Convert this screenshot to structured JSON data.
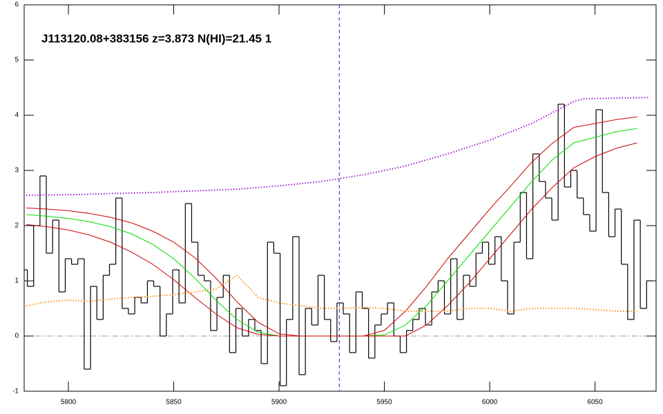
{
  "chart_data": {
    "type": "line",
    "title": "J113120.08+383156 z=3.873 N(HI)=21.45 1",
    "xlim": [
      5779,
      6079
    ],
    "ylim": [
      -1,
      6
    ],
    "xticks": [
      5800,
      5850,
      5900,
      5950,
      6000,
      6050
    ],
    "yticks": [
      -1,
      0,
      1,
      2,
      3,
      4,
      5,
      6
    ],
    "vline_x": 5928.6,
    "vline_color": "#2222cc",
    "series": [
      {
        "style": "step",
        "color": "#000000",
        "x": [
          5779,
          5782,
          5785,
          5788,
          5791,
          5794,
          5797,
          5800,
          5803,
          5806,
          5809,
          5812,
          5815,
          5818,
          5821,
          5824,
          5827,
          5830,
          5833,
          5836,
          5839,
          5842,
          5845,
          5848,
          5851,
          5854,
          5857,
          5860,
          5863,
          5866,
          5869,
          5872,
          5875,
          5878,
          5881,
          5884,
          5887,
          5890,
          5893,
          5896,
          5899,
          5902,
          5905,
          5908,
          5911,
          5914,
          5917,
          5920,
          5923,
          5926,
          5929,
          5932,
          5935,
          5938,
          5941,
          5944,
          5947,
          5950,
          5953,
          5956,
          5959,
          5962,
          5965,
          5968,
          5971,
          5974,
          5977,
          5980,
          5983,
          5986,
          5989,
          5992,
          5995,
          5998,
          6001,
          6004,
          6007,
          6010,
          6013,
          6016,
          6019,
          6022,
          6025,
          6028,
          6031,
          6034,
          6037,
          6040,
          6043,
          6046,
          6049,
          6052,
          6055,
          6058,
          6061,
          6064,
          6067,
          6070,
          6073,
          6076
        ],
        "values": [
          1.2,
          0.9,
          2.0,
          2.9,
          1.5,
          2.1,
          0.8,
          1.4,
          1.3,
          1.4,
          -0.6,
          0.9,
          0.3,
          1.1,
          1.3,
          2.5,
          0.5,
          0.4,
          0.7,
          0.6,
          1.0,
          0.9,
          0.0,
          0.4,
          1.2,
          0.6,
          2.4,
          1.7,
          1.1,
          1.0,
          0.1,
          0.7,
          1.1,
          -0.3,
          0.5,
          0.0,
          0.3,
          0.1,
          -0.5,
          1.7,
          1.5,
          -0.9,
          0.3,
          1.8,
          -0.7,
          0.5,
          0.2,
          1.1,
          0.3,
          -0.1,
          0.6,
          0.4,
          -0.3,
          0.8,
          0.5,
          -0.4,
          0.2,
          0.4,
          0.6,
          0.0,
          -0.3,
          0.1,
          0.3,
          0.5,
          0.2,
          0.8,
          1.0,
          0.4,
          1.4,
          0.3,
          1.1,
          0.9,
          1.5,
          1.7,
          1.3,
          1.8,
          1.0,
          0.4,
          1.7,
          2.6,
          1.4,
          3.3,
          2.8,
          2.5,
          2.1,
          4.2,
          2.7,
          3.0,
          2.5,
          2.2,
          1.9,
          4.1,
          2.6,
          1.8,
          2.3,
          1.3,
          0.3,
          2.1,
          0.5,
          1.0
        ]
      },
      {
        "style": "solid",
        "color": "#00dd00",
        "x": [
          5780,
          5790,
          5800,
          5810,
          5820,
          5830,
          5840,
          5850,
          5860,
          5870,
          5880,
          5890,
          5900,
          5910,
          5920,
          5930,
          5940,
          5950,
          5960,
          5970,
          5980,
          5990,
          6000,
          6010,
          6020,
          6030,
          6040,
          6050,
          6060,
          6070
        ],
        "values": [
          2.2,
          2.17,
          2.13,
          2.07,
          1.98,
          1.85,
          1.66,
          1.4,
          1.05,
          0.65,
          0.3,
          0.07,
          0,
          0,
          0,
          0,
          0,
          0.02,
          0.2,
          0.55,
          1.0,
          1.45,
          1.9,
          2.35,
          2.8,
          3.2,
          3.5,
          3.6,
          3.7,
          3.76
        ]
      },
      {
        "style": "solid",
        "color": "#cc0000",
        "x": [
          5780,
          5790,
          5800,
          5810,
          5820,
          5830,
          5840,
          5850,
          5860,
          5870,
          5880,
          5890,
          5900,
          5910,
          5920,
          5930,
          5940,
          5950,
          5960,
          5970,
          5980,
          5990,
          6000,
          6010,
          6020,
          6030,
          6040,
          6050,
          6060,
          6070
        ],
        "values": [
          2.32,
          2.3,
          2.27,
          2.22,
          2.15,
          2.05,
          1.9,
          1.7,
          1.42,
          1.05,
          0.62,
          0.25,
          0.04,
          0,
          0,
          0,
          0,
          0.1,
          0.45,
          0.9,
          1.4,
          1.85,
          2.3,
          2.72,
          3.15,
          3.5,
          3.78,
          3.85,
          3.92,
          3.97
        ]
      },
      {
        "style": "solid",
        "color": "#cc0000",
        "x": [
          5780,
          5790,
          5800,
          5810,
          5820,
          5830,
          5840,
          5850,
          5860,
          5870,
          5880,
          5890,
          5900,
          5910,
          5920,
          5930,
          5940,
          5950,
          5960,
          5970,
          5980,
          5990,
          6000,
          6010,
          6020,
          6030,
          6040,
          6050,
          6060,
          6070
        ],
        "values": [
          2.02,
          1.98,
          1.92,
          1.83,
          1.7,
          1.52,
          1.3,
          1.02,
          0.7,
          0.4,
          0.15,
          0.03,
          0,
          0,
          0,
          0,
          0,
          0,
          0,
          0.2,
          0.55,
          0.95,
          1.4,
          1.85,
          2.3,
          2.7,
          3.05,
          3.25,
          3.4,
          3.5
        ]
      },
      {
        "style": "dotted",
        "color": "#9900cc",
        "x": [
          5780,
          5800,
          5820,
          5840,
          5860,
          5880,
          5900,
          5920,
          5940,
          5960,
          5980,
          6000,
          6020,
          6040,
          6045,
          6060,
          6076
        ],
        "values": [
          2.55,
          2.56,
          2.58,
          2.6,
          2.63,
          2.66,
          2.72,
          2.8,
          2.92,
          3.08,
          3.3,
          3.55,
          3.85,
          4.25,
          4.3,
          4.31,
          4.32
        ]
      },
      {
        "style": "dotted",
        "color": "#ff8800",
        "x": [
          5780,
          5790,
          5800,
          5810,
          5820,
          5830,
          5840,
          5850,
          5860,
          5870,
          5880,
          5890,
          5900,
          5910,
          5920,
          5930,
          5940,
          5950,
          5960,
          5970,
          5980,
          5990,
          6000,
          6010,
          6020,
          6030,
          6040,
          6050,
          6060,
          6070
        ],
        "values": [
          0.55,
          0.62,
          0.65,
          0.63,
          0.67,
          0.7,
          0.72,
          0.75,
          0.8,
          0.85,
          1.1,
          0.7,
          0.6,
          0.55,
          0.5,
          0.5,
          0.52,
          0.5,
          0.45,
          0.45,
          0.45,
          0.5,
          0.5,
          0.45,
          0.5,
          0.5,
          0.5,
          0.48,
          0.45,
          0.45
        ]
      }
    ]
  }
}
